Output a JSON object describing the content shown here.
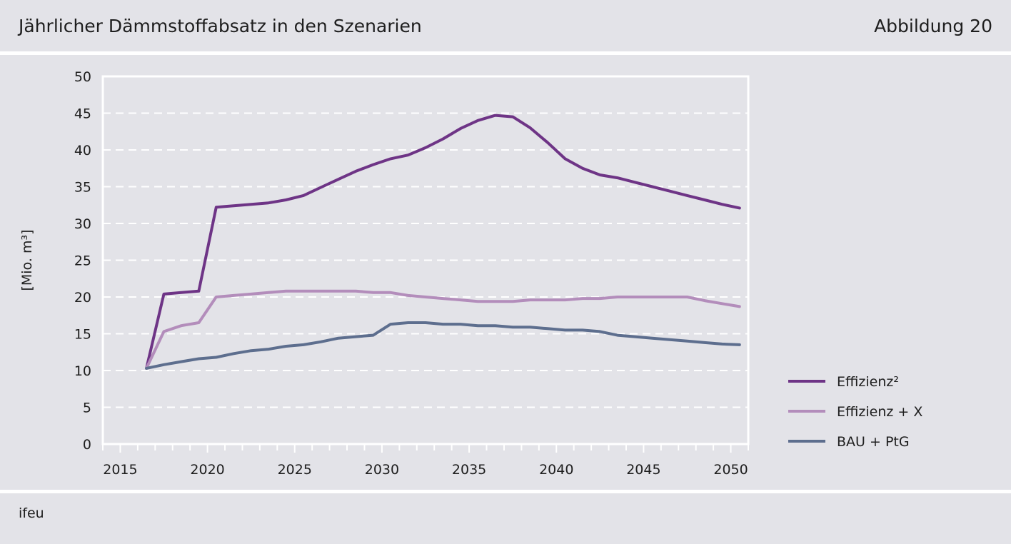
{
  "header": {
    "title": "Jährlicher Dämmstoffabsatz in den Szenarien",
    "figure_label": "Abbildung 20"
  },
  "footer": {
    "source": "ifeu"
  },
  "colors": {
    "background": "#e3e3e8",
    "grid": "#ffffff",
    "series_effizienz2": "#6e3486",
    "series_effizienzx": "#b38dbb",
    "series_bauptg": "#5d6e8e"
  },
  "chart_data": {
    "type": "line",
    "title": "Jährlicher Dämmstoffabsatz in den Szenarien",
    "xlabel": "",
    "ylabel": "[Mio. m³]",
    "xlim": [
      2014,
      2051
    ],
    "ylim": [
      0,
      50
    ],
    "yticks": [
      0,
      5,
      10,
      15,
      20,
      25,
      30,
      35,
      40,
      45,
      50
    ],
    "xticks": [
      2015,
      2020,
      2025,
      2030,
      2035,
      2040,
      2045,
      2050
    ],
    "grid": "horizontal dashed",
    "legend_position": "right",
    "x": [
      2016.5,
      2017.5,
      2018.5,
      2019.5,
      2020.5,
      2021.5,
      2022.5,
      2023.5,
      2024.5,
      2025.5,
      2026.5,
      2027.5,
      2028.5,
      2029.5,
      2030.5,
      2031.5,
      2032.5,
      2033.5,
      2034.5,
      2035.5,
      2036.5,
      2037.5,
      2038.5,
      2039.5,
      2040.5,
      2041.5,
      2042.5,
      2043.5,
      2044.5,
      2045.5,
      2046.5,
      2047.5,
      2048.5,
      2049.5,
      2050.5
    ],
    "series": [
      {
        "name": "Effizienz²",
        "color": "#6e3486",
        "values": [
          10.3,
          20.4,
          20.6,
          20.8,
          32.2,
          32.4,
          32.6,
          32.8,
          33.2,
          33.8,
          34.9,
          36.0,
          37.1,
          38.0,
          38.8,
          39.3,
          40.3,
          41.5,
          42.9,
          44.0,
          44.7,
          44.5,
          43.0,
          41.0,
          38.8,
          37.5,
          36.6,
          36.2,
          35.6,
          35.0,
          34.4,
          33.8,
          33.2,
          32.6,
          32.1
        ]
      },
      {
        "name": "Effizienz + X",
        "color": "#b38dbb",
        "values": [
          10.3,
          15.3,
          16.1,
          16.5,
          20.0,
          20.2,
          20.4,
          20.6,
          20.8,
          20.8,
          20.8,
          20.8,
          20.8,
          20.6,
          20.6,
          20.2,
          20.0,
          19.8,
          19.6,
          19.4,
          19.4,
          19.4,
          19.6,
          19.6,
          19.6,
          19.8,
          19.8,
          20.0,
          20.0,
          20.0,
          20.0,
          20.0,
          19.5,
          19.1,
          18.7
        ]
      },
      {
        "name": "BAU + PtG",
        "color": "#5d6e8e",
        "values": [
          10.3,
          10.8,
          11.2,
          11.6,
          11.8,
          12.3,
          12.7,
          12.9,
          13.3,
          13.5,
          13.9,
          14.4,
          14.6,
          14.8,
          16.3,
          16.5,
          16.5,
          16.3,
          16.3,
          16.1,
          16.1,
          15.9,
          15.9,
          15.7,
          15.5,
          15.5,
          15.3,
          14.8,
          14.6,
          14.4,
          14.2,
          14.0,
          13.8,
          13.6,
          13.5
        ]
      }
    ]
  }
}
